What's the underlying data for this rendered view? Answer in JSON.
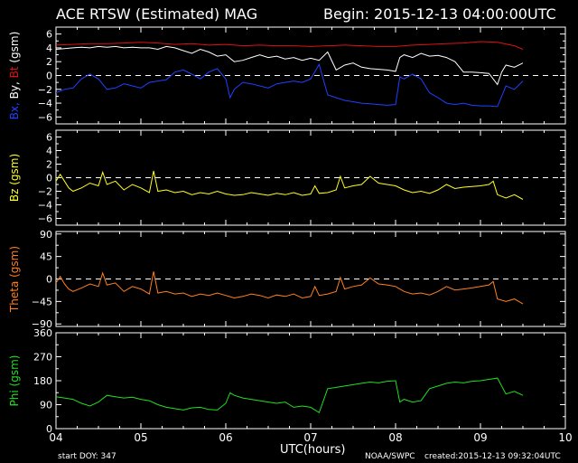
{
  "header": {
    "title": "ACE RTSW (Estimated) MAG",
    "begin": "Begin: 2015-12-13 04:00:00UTC"
  },
  "footer": {
    "start_doy": "start DOY:  347",
    "xlabel": "UTC(hours)",
    "agency": "NOAA/SWPC",
    "created": "created:2015-12-13 09:32:04UTC"
  },
  "colors": {
    "background": "#000000",
    "axes": "#ffffff",
    "bx": "#2040ff",
    "by": "#ffffff",
    "bt": "#e01010",
    "bz": "#ffff20",
    "theta": "#ff8020",
    "phi": "#20e020"
  },
  "chart_data": [
    {
      "type": "line",
      "ylabel_parts": [
        {
          "text": "Bx,",
          "color": "#2040ff"
        },
        {
          "text": " By,",
          "color": "#ffffff"
        },
        {
          "text": " Bt",
          "color": "#e01010"
        },
        {
          "text": " (gsm)",
          "color": "#ffffff"
        }
      ],
      "xlim": [
        4,
        10
      ],
      "ylim": [
        -7,
        7
      ],
      "yticks": [
        6,
        4,
        2,
        0,
        -2,
        -4,
        -6
      ],
      "ytick_labels": [
        "6",
        "4",
        "2",
        "0",
        "−2",
        "−4",
        "−6"
      ],
      "zero_line": true,
      "series": [
        {
          "key": "bt",
          "color": "#e01010",
          "x": [
            4.0,
            4.2,
            4.4,
            4.6,
            4.8,
            5.0,
            5.2,
            5.4,
            5.6,
            5.8,
            6.0,
            6.2,
            6.4,
            6.6,
            6.8,
            7.0,
            7.2,
            7.4,
            7.6,
            7.8,
            8.0,
            8.2,
            8.4,
            8.6,
            8.8,
            9.0,
            9.2,
            9.4,
            9.5
          ],
          "y": [
            4.4,
            4.5,
            4.6,
            4.6,
            4.7,
            4.8,
            4.7,
            4.5,
            4.6,
            4.4,
            4.5,
            4.3,
            4.4,
            4.3,
            4.3,
            4.2,
            4.3,
            4.4,
            4.3,
            4.2,
            4.2,
            4.4,
            4.5,
            4.6,
            4.7,
            4.9,
            4.8,
            4.3,
            3.8
          ]
        },
        {
          "key": "by",
          "color": "#ffffff",
          "x": [
            4.0,
            4.1,
            4.2,
            4.3,
            4.4,
            4.5,
            4.6,
            4.7,
            4.8,
            4.9,
            5.0,
            5.1,
            5.2,
            5.3,
            5.4,
            5.5,
            5.6,
            5.7,
            5.8,
            5.9,
            6.0,
            6.1,
            6.2,
            6.3,
            6.4,
            6.5,
            6.6,
            6.7,
            6.8,
            6.9,
            7.0,
            7.1,
            7.2,
            7.3,
            7.4,
            7.5,
            7.6,
            7.7,
            7.8,
            7.9,
            8.0,
            8.05,
            8.1,
            8.2,
            8.3,
            8.4,
            8.5,
            8.6,
            8.7,
            8.8,
            8.9,
            9.0,
            9.1,
            9.2,
            9.25,
            9.3,
            9.4,
            9.5
          ],
          "y": [
            3.8,
            3.9,
            4.0,
            4.1,
            4.0,
            4.2,
            4.1,
            4.2,
            4.0,
            4.1,
            4.0,
            4.0,
            3.8,
            4.2,
            4.0,
            3.6,
            3.2,
            3.8,
            3.4,
            2.8,
            3.0,
            2.0,
            2.2,
            2.6,
            3.0,
            2.6,
            2.8,
            2.4,
            2.6,
            2.2,
            2.5,
            2.2,
            3.4,
            0.8,
            1.5,
            1.8,
            1.2,
            1.0,
            0.9,
            0.8,
            0.6,
            2.6,
            3.0,
            2.6,
            3.2,
            2.8,
            2.9,
            2.6,
            2.0,
            0.5,
            0.5,
            0.4,
            0.3,
            -1.3,
            0.5,
            1.5,
            1.2,
            1.8
          ]
        },
        {
          "key": "bx",
          "color": "#2040ff",
          "x": [
            4.0,
            4.1,
            4.2,
            4.3,
            4.4,
            4.5,
            4.6,
            4.7,
            4.8,
            4.9,
            5.0,
            5.1,
            5.2,
            5.3,
            5.4,
            5.5,
            5.6,
            5.7,
            5.8,
            5.9,
            6.0,
            6.05,
            6.1,
            6.2,
            6.3,
            6.4,
            6.5,
            6.6,
            6.7,
            6.8,
            6.9,
            7.0,
            7.1,
            7.2,
            7.3,
            7.4,
            7.5,
            7.6,
            7.7,
            7.8,
            7.9,
            8.0,
            8.05,
            8.1,
            8.2,
            8.3,
            8.4,
            8.5,
            8.6,
            8.7,
            8.8,
            8.9,
            9.0,
            9.1,
            9.2,
            9.3,
            9.4,
            9.5
          ],
          "y": [
            -2.5,
            -2.0,
            -1.8,
            -0.5,
            0.2,
            -0.5,
            -2.0,
            -1.8,
            -1.2,
            -1.5,
            -1.8,
            -1.0,
            -0.8,
            -0.6,
            0.5,
            0.8,
            0.2,
            -0.5,
            0.5,
            1.0,
            -0.5,
            -3.2,
            -2.0,
            -1.0,
            -1.2,
            -1.5,
            -1.8,
            -1.2,
            -1.0,
            -0.8,
            -1.0,
            -0.5,
            1.6,
            -2.8,
            -3.2,
            -3.6,
            -3.8,
            -4.0,
            -4.1,
            -4.2,
            -4.3,
            -4.2,
            -0.2,
            -0.5,
            0.2,
            -0.5,
            -2.5,
            -3.2,
            -4.0,
            -4.2,
            -4.0,
            -4.3,
            -4.4,
            -4.4,
            -4.5,
            -1.5,
            -2.0,
            -0.8
          ]
        }
      ]
    },
    {
      "type": "line",
      "ylabel_parts": [
        {
          "text": "Bz  (gsm)",
          "color": "#ffff20"
        }
      ],
      "xlim": [
        4,
        10
      ],
      "ylim": [
        -7,
        7
      ],
      "yticks": [
        6,
        4,
        2,
        0,
        -2,
        -4,
        -6
      ],
      "ytick_labels": [
        "6",
        "4",
        "2",
        "0",
        "−2",
        "−4",
        "−6"
      ],
      "zero_line": true,
      "series": [
        {
          "key": "bz",
          "color": "#ffff20",
          "x": [
            4.0,
            4.05,
            4.1,
            4.15,
            4.2,
            4.3,
            4.4,
            4.5,
            4.55,
            4.6,
            4.7,
            4.8,
            4.9,
            5.0,
            5.1,
            5.15,
            5.2,
            5.3,
            5.4,
            5.5,
            5.6,
            5.7,
            5.8,
            5.9,
            6.0,
            6.1,
            6.2,
            6.3,
            6.4,
            6.5,
            6.6,
            6.7,
            6.8,
            6.9,
            7.0,
            7.05,
            7.1,
            7.2,
            7.3,
            7.35,
            7.4,
            7.5,
            7.6,
            7.7,
            7.8,
            7.9,
            8.0,
            8.1,
            8.2,
            8.3,
            8.4,
            8.5,
            8.6,
            8.7,
            8.8,
            8.9,
            9.0,
            9.1,
            9.15,
            9.2,
            9.3,
            9.4,
            9.5
          ],
          "y": [
            -0.5,
            0.5,
            -0.5,
            -1.5,
            -2.0,
            -1.5,
            -0.8,
            -1.2,
            0.8,
            -1.0,
            -0.5,
            -1.8,
            -1.0,
            -1.5,
            -2.2,
            1.0,
            -2.0,
            -1.8,
            -2.2,
            -2.0,
            -2.5,
            -2.2,
            -2.4,
            -2.0,
            -2.4,
            -2.6,
            -2.5,
            -2.2,
            -2.4,
            -2.6,
            -2.3,
            -2.5,
            -2.2,
            -2.6,
            -2.4,
            -1.2,
            -2.3,
            -2.2,
            -1.8,
            0.2,
            -1.5,
            -1.2,
            -1.0,
            0.2,
            -0.8,
            -1.0,
            -1.2,
            -1.8,
            -2.2,
            -2.0,
            -2.3,
            -1.8,
            -1.0,
            -1.6,
            -1.4,
            -1.3,
            -1.2,
            -1.0,
            -0.5,
            -2.5,
            -3.0,
            -2.5,
            -3.2
          ]
        }
      ]
    },
    {
      "type": "line",
      "ylabel_parts": [
        {
          "text": "Theta  (gsm)",
          "color": "#ff8020"
        }
      ],
      "xlim": [
        4,
        10
      ],
      "ylim": [
        -95,
        95
      ],
      "yticks": [
        90,
        45,
        0,
        -45,
        -90
      ],
      "ytick_labels": [
        "90",
        "45",
        "0",
        "−45",
        "−90"
      ],
      "zero_line": true,
      "series": [
        {
          "key": "theta",
          "color": "#ff8020",
          "x": [
            4.0,
            4.05,
            4.1,
            4.15,
            4.2,
            4.3,
            4.4,
            4.5,
            4.55,
            4.6,
            4.7,
            4.8,
            4.9,
            5.0,
            5.1,
            5.15,
            5.2,
            5.3,
            5.4,
            5.5,
            5.6,
            5.7,
            5.8,
            5.9,
            6.0,
            6.1,
            6.2,
            6.3,
            6.4,
            6.5,
            6.6,
            6.7,
            6.8,
            6.9,
            7.0,
            7.05,
            7.1,
            7.2,
            7.3,
            7.35,
            7.4,
            7.5,
            7.6,
            7.7,
            7.8,
            7.9,
            8.0,
            8.1,
            8.2,
            8.3,
            8.4,
            8.5,
            8.6,
            8.7,
            8.8,
            8.9,
            9.0,
            9.1,
            9.15,
            9.2,
            9.3,
            9.4,
            9.5
          ],
          "y": [
            -8,
            5,
            -10,
            -20,
            -25,
            -18,
            -10,
            -15,
            12,
            -12,
            -8,
            -25,
            -15,
            -20,
            -30,
            15,
            -28,
            -25,
            -30,
            -28,
            -35,
            -30,
            -33,
            -28,
            -33,
            -38,
            -35,
            -30,
            -33,
            -38,
            -32,
            -35,
            -30,
            -38,
            -35,
            -15,
            -33,
            -30,
            -25,
            3,
            -20,
            -15,
            -12,
            2,
            -10,
            -12,
            -15,
            -25,
            -30,
            -28,
            -32,
            -25,
            -15,
            -22,
            -20,
            -18,
            -15,
            -12,
            -5,
            -40,
            -45,
            -40,
            -50
          ]
        }
      ]
    },
    {
      "type": "line",
      "ylabel_parts": [
        {
          "text": "Phi  (gsm)",
          "color": "#20e020"
        }
      ],
      "xlim": [
        4,
        10
      ],
      "ylim": [
        0,
        360
      ],
      "yticks": [
        360,
        270,
        180,
        90,
        0
      ],
      "ytick_labels": [
        "360",
        "270",
        "180",
        "90",
        "0"
      ],
      "zero_line": false,
      "series": [
        {
          "key": "phi",
          "color": "#20e020",
          "x": [
            4.0,
            4.1,
            4.2,
            4.3,
            4.4,
            4.5,
            4.6,
            4.7,
            4.8,
            4.9,
            5.0,
            5.1,
            5.2,
            5.3,
            5.4,
            5.5,
            5.6,
            5.7,
            5.8,
            5.9,
            6.0,
            6.05,
            6.1,
            6.2,
            6.3,
            6.4,
            6.5,
            6.6,
            6.7,
            6.8,
            6.9,
            7.0,
            7.1,
            7.2,
            7.3,
            7.4,
            7.5,
            7.6,
            7.7,
            7.8,
            7.9,
            8.0,
            8.05,
            8.1,
            8.2,
            8.3,
            8.4,
            8.5,
            8.6,
            8.7,
            8.8,
            8.9,
            9.0,
            9.1,
            9.2,
            9.3,
            9.4,
            9.5
          ],
          "y": [
            120,
            115,
            110,
            95,
            85,
            100,
            125,
            120,
            115,
            118,
            110,
            105,
            90,
            80,
            75,
            70,
            78,
            80,
            72,
            70,
            95,
            135,
            125,
            115,
            110,
            105,
            100,
            95,
            100,
            80,
            85,
            80,
            60,
            150,
            155,
            160,
            165,
            170,
            175,
            172,
            178,
            180,
            100,
            110,
            100,
            105,
            150,
            160,
            170,
            175,
            172,
            178,
            180,
            185,
            190,
            130,
            140,
            125
          ]
        }
      ]
    }
  ],
  "x_ticks": [
    4,
    5,
    6,
    7,
    8,
    9,
    10
  ],
  "x_tick_labels": [
    "04",
    "05",
    "06",
    "07",
    "08",
    "09",
    "10"
  ]
}
